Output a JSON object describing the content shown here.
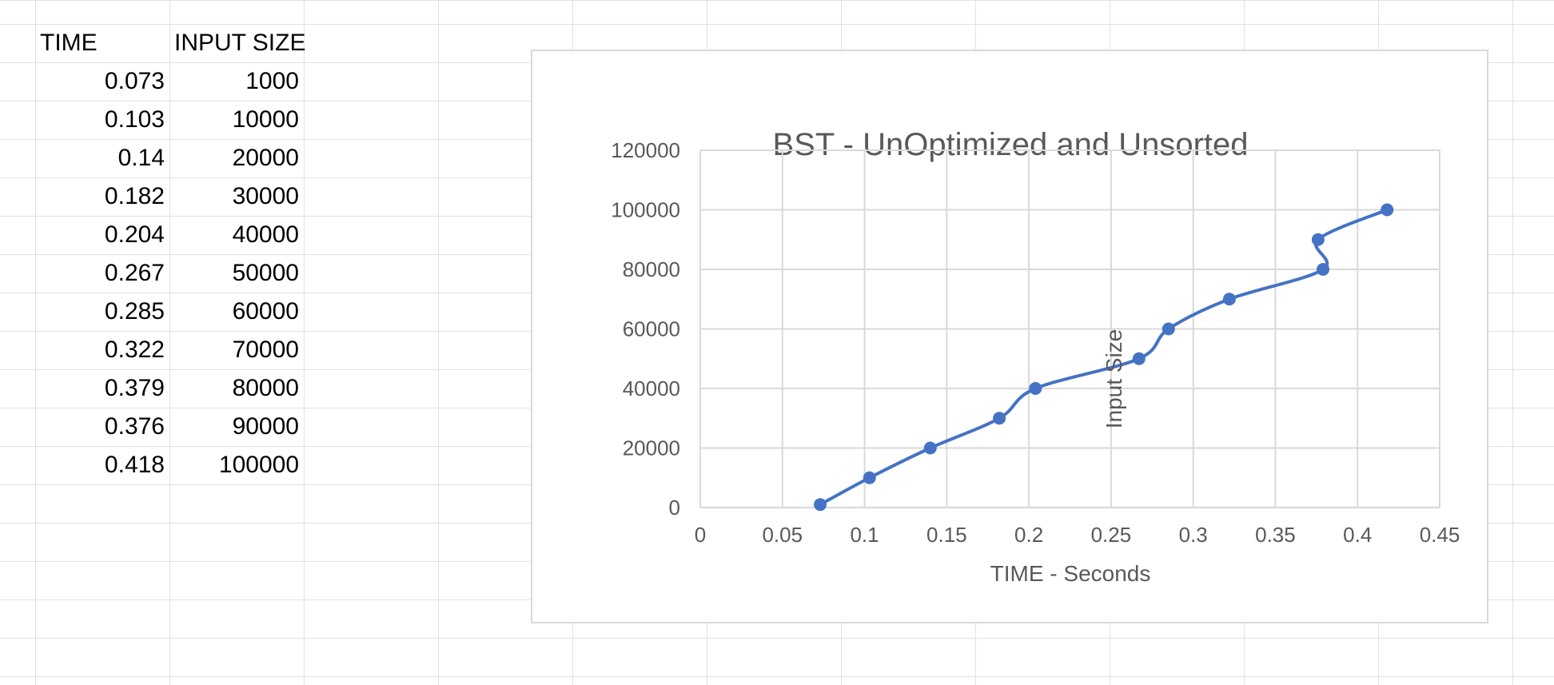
{
  "sheet": {
    "headers": [
      "TIME",
      "INPUT SIZE"
    ],
    "rows": [
      [
        "0.073",
        "1000"
      ],
      [
        "0.103",
        "10000"
      ],
      [
        "0.14",
        "20000"
      ],
      [
        "0.182",
        "30000"
      ],
      [
        "0.204",
        "40000"
      ],
      [
        "0.267",
        "50000"
      ],
      [
        "0.285",
        "60000"
      ],
      [
        "0.322",
        "70000"
      ],
      [
        "0.379",
        "80000"
      ],
      [
        "0.376",
        "90000"
      ],
      [
        "0.418",
        "100000"
      ]
    ]
  },
  "chart_data": {
    "type": "scatter",
    "title": "BST  - UnOptimized and Unsorted",
    "xlabel": "TIME - Seconds",
    "ylabel": "Input Size",
    "xlim": [
      0,
      0.45
    ],
    "ylim": [
      0,
      120000
    ],
    "x_ticks": [
      "0",
      "0.05",
      "0.1",
      "0.15",
      "0.2",
      "0.25",
      "0.3",
      "0.35",
      "0.4",
      "0.45"
    ],
    "y_ticks": [
      "0",
      "20000",
      "40000",
      "60000",
      "80000",
      "100000",
      "120000"
    ],
    "grid": true,
    "smooth_line": true,
    "series_color": "#4472c4",
    "gridline_color": "#d9d9d9",
    "series": [
      {
        "x": [
          0.073,
          0.103,
          0.14,
          0.182,
          0.204,
          0.267,
          0.285,
          0.322,
          0.379,
          0.376,
          0.418
        ],
        "y": [
          1000,
          10000,
          20000,
          30000,
          40000,
          50000,
          60000,
          70000,
          80000,
          90000,
          100000
        ]
      }
    ]
  }
}
